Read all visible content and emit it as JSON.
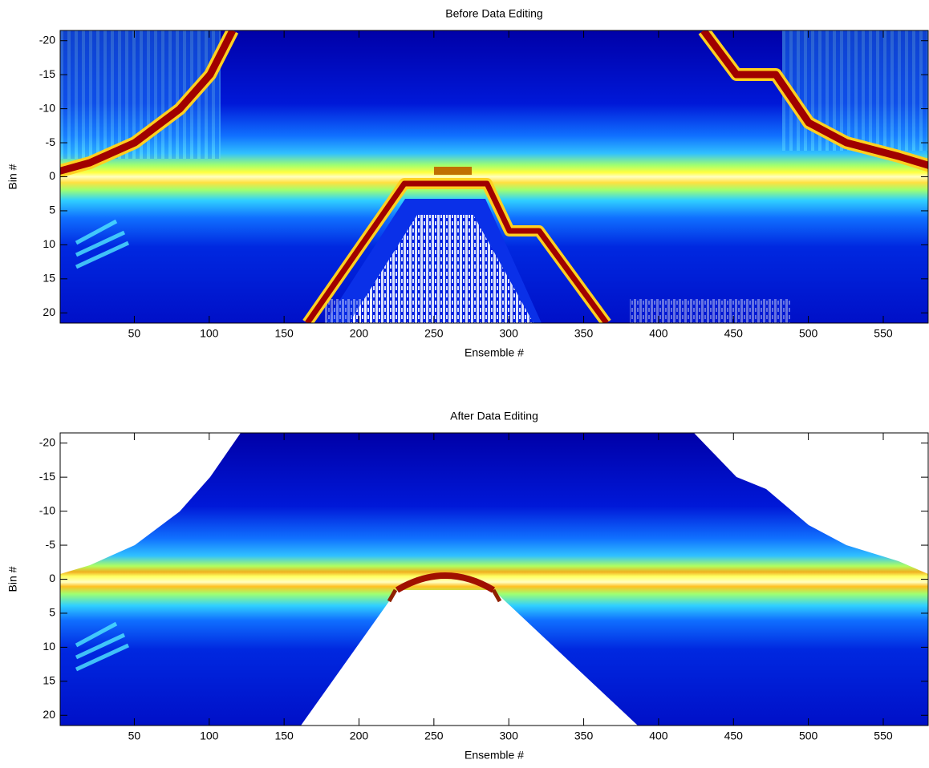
{
  "chart_data": [
    {
      "type": "heatmap",
      "title": "Before Data Editing",
      "xlabel": "Ensemble #",
      "ylabel": "Bin #",
      "xlim": [
        0.5,
        580
      ],
      "ylim": [
        -21.5,
        21.5
      ],
      "ydir": "reverse",
      "xticks": [
        50,
        100,
        150,
        200,
        250,
        300,
        350,
        400,
        450,
        500,
        550
      ],
      "yticks": [
        -20,
        -15,
        -10,
        -5,
        0,
        5,
        10,
        15,
        20
      ]
    },
    {
      "type": "heatmap",
      "title": "After Data Editing",
      "xlabel": "Ensemble #",
      "ylabel": "Bin #",
      "xlim": [
        0.5,
        580
      ],
      "ylim": [
        -21.5,
        21.5
      ],
      "ydir": "reverse",
      "xticks": [
        50,
        100,
        150,
        200,
        250,
        300,
        350,
        400,
        450,
        500,
        550
      ],
      "yticks": [
        -20,
        -15,
        -10,
        -5,
        0,
        5,
        10,
        15,
        20
      ]
    }
  ]
}
